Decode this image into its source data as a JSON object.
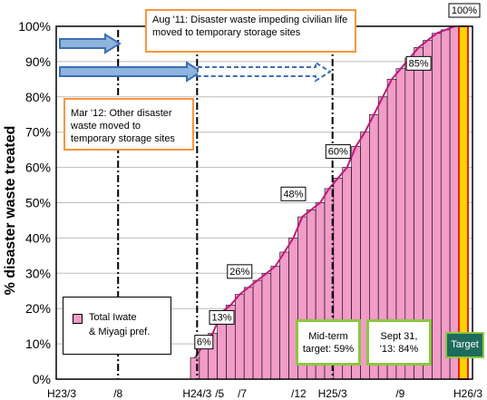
{
  "chart_data": {
    "type": "bar",
    "title": "",
    "xlabel": "",
    "ylabel": "% disaster waste treated",
    "ylim": [
      0,
      100
    ],
    "y_ticks": [
      "0%",
      "10%",
      "20%",
      "30%",
      "40%",
      "50%",
      "60%",
      "70%",
      "80%",
      "90%",
      "100%"
    ],
    "x_ticks": [
      "H23/3",
      "/8",
      "H24/3",
      "/5",
      "/7",
      "/12",
      "H25/3",
      "/9",
      "H26/3"
    ],
    "x_tick_month_index": [
      0,
      5,
      12,
      14,
      16,
      21,
      24,
      30,
      36
    ],
    "months": 37,
    "series": [
      {
        "name": "Total Iwate & Miyagi pref.",
        "color": "#f29cc8",
        "start_index": 15,
        "values": [
          6,
          10,
          13,
          19,
          21,
          24,
          26,
          28,
          30,
          32,
          36,
          40,
          46,
          48,
          50,
          54,
          57,
          60,
          66,
          70,
          75,
          80,
          85,
          88,
          91,
          94,
          96,
          98,
          99,
          100
        ]
      }
    ],
    "target": {
      "label": "Target",
      "value": 100,
      "color": "#ffd200"
    },
    "data_labels": [
      {
        "index": 16,
        "value": 6,
        "text": "6%"
      },
      {
        "index": 18,
        "value": 13,
        "text": "13%"
      },
      {
        "index": 20,
        "value": 26,
        "text": "26%"
      },
      {
        "index": 26,
        "value": 48,
        "text": "48%"
      },
      {
        "index": 31,
        "value": 60,
        "text": "60%"
      },
      {
        "index": 40,
        "value": 85,
        "text": "85%"
      },
      {
        "index": 45,
        "value": 100,
        "text": "100%"
      }
    ],
    "vertical_markers": [
      {
        "month": 5,
        "style": "dash-dot"
      },
      {
        "month": 12,
        "style": "dash-dot"
      },
      {
        "month": 24,
        "style": "dash-dot"
      }
    ],
    "annotations": {
      "aug11": "Aug '11: Disaster waste impeding civilian life moved to temporary storage sites",
      "mar12_line1": "Mar '12: Other disaster",
      "mar12_line2": "waste moved to",
      "mar12_line3": "temporary storage sites",
      "midterm_line1": "Mid-term",
      "midterm_line2": "target: 59%",
      "sept_line1": "Sept 31,",
      "sept_line2": "'13: 84%"
    },
    "legend": {
      "line1": "Total Iwate",
      "line2": "& Miyagi pref."
    }
  }
}
